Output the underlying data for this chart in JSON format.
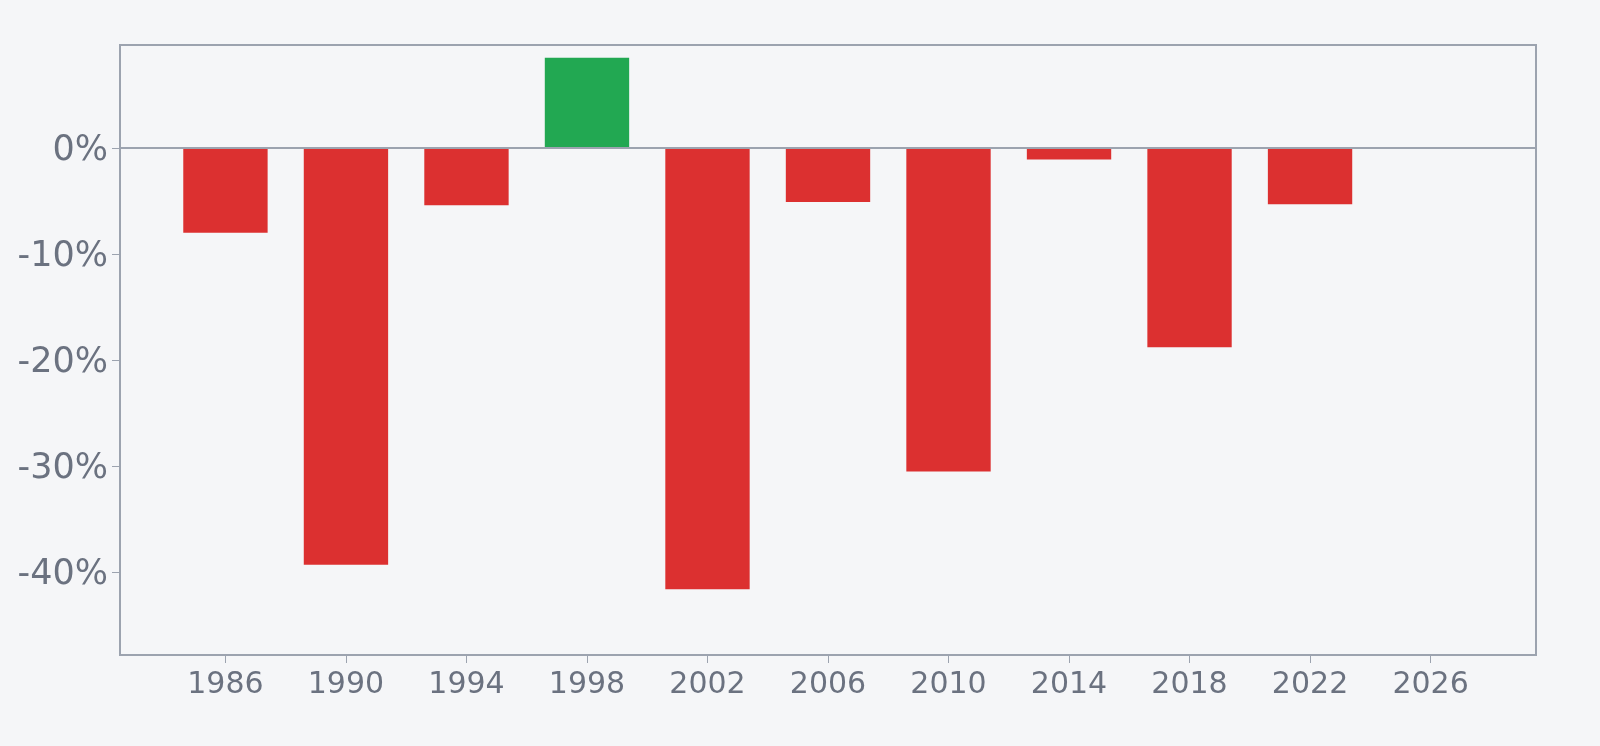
{
  "chart_data": {
    "type": "bar",
    "x": [
      1986,
      1990,
      1994,
      1998,
      2002,
      2006,
      2010,
      2014,
      2018,
      2022
    ],
    "values": [
      -8.0,
      -39.3,
      -5.4,
      8.5,
      -41.6,
      -5.1,
      -30.5,
      -1.1,
      -18.8,
      -5.3
    ],
    "colors": [
      "#dc3030",
      "#dc3030",
      "#dc3030",
      "#22a852",
      "#dc3030",
      "#dc3030",
      "#dc3030",
      "#dc3030",
      "#dc3030",
      "#dc3030"
    ],
    "xlim": [
      1982.5,
      2029.5
    ],
    "xticks": [
      1986,
      1990,
      1994,
      1998,
      2002,
      2006,
      2010,
      2014,
      2018,
      2022,
      2026
    ],
    "ylim": [
      -47.8,
      9.7
    ],
    "yticks": [
      {
        "value": 0,
        "label": "0%"
      },
      {
        "value": -10,
        "label": "-10%"
      },
      {
        "value": -20,
        "label": "-20%"
      },
      {
        "value": -30,
        "label": "-30%"
      },
      {
        "value": -40,
        "label": "-40%"
      }
    ],
    "ref_lines": [
      {
        "axis": "y",
        "value": 0,
        "color": "#9ca3af"
      }
    ],
    "grid": false
  }
}
